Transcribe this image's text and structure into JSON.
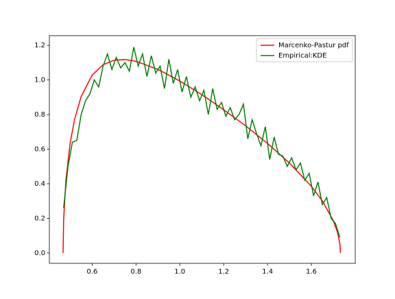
{
  "chart_data": {
    "type": "line",
    "series": [
      {
        "name": "Marcenko-Pastur pdf",
        "color": "#ff0000",
        "x": [
          0.4675,
          0.47,
          0.48,
          0.5,
          0.52,
          0.55,
          0.6,
          0.65,
          0.7,
          0.75,
          0.8,
          0.9,
          1.0,
          1.1,
          1.2,
          1.3,
          1.4,
          1.5,
          1.6,
          1.65,
          1.7,
          1.72,
          1.73,
          1.7325
        ],
        "values": [
          0,
          0.19,
          0.415,
          0.637,
          0.772,
          0.904,
          1.028,
          1.088,
          1.114,
          1.118,
          1.108,
          1.061,
          0.994,
          0.915,
          0.828,
          0.735,
          0.633,
          0.52,
          0.385,
          0.301,
          0.187,
          0.116,
          0.052,
          0
        ]
      },
      {
        "name": "Empirical:KDE",
        "color": "#008000",
        "x": [
          0.47,
          0.49,
          0.51,
          0.53,
          0.55,
          0.57,
          0.59,
          0.61,
          0.63,
          0.65,
          0.67,
          0.69,
          0.71,
          0.73,
          0.75,
          0.77,
          0.79,
          0.81,
          0.83,
          0.85,
          0.87,
          0.89,
          0.91,
          0.93,
          0.95,
          0.97,
          0.99,
          1.01,
          1.03,
          1.05,
          1.07,
          1.09,
          1.11,
          1.13,
          1.15,
          1.17,
          1.19,
          1.21,
          1.23,
          1.25,
          1.27,
          1.29,
          1.31,
          1.33,
          1.35,
          1.37,
          1.39,
          1.41,
          1.43,
          1.45,
          1.47,
          1.49,
          1.51,
          1.53,
          1.55,
          1.57,
          1.59,
          1.61,
          1.63,
          1.65,
          1.67,
          1.69,
          1.71,
          1.73
        ],
        "values": [
          0.26,
          0.5,
          0.64,
          0.65,
          0.8,
          0.88,
          0.92,
          1.0,
          0.96,
          1.08,
          1.15,
          1.06,
          1.13,
          1.07,
          1.1,
          1.05,
          1.19,
          1.08,
          1.15,
          1.02,
          1.14,
          1.04,
          1.08,
          0.95,
          1.12,
          0.98,
          1.06,
          0.93,
          1.02,
          0.9,
          0.96,
          0.88,
          0.94,
          0.8,
          0.95,
          0.83,
          0.87,
          0.79,
          0.84,
          0.77,
          0.8,
          0.86,
          0.66,
          0.77,
          0.69,
          0.62,
          0.73,
          0.54,
          0.67,
          0.57,
          0.56,
          0.5,
          0.55,
          0.48,
          0.52,
          0.42,
          0.46,
          0.33,
          0.41,
          0.28,
          0.32,
          0.2,
          0.17,
          0.09
        ]
      }
    ],
    "xlim": [
      0.405,
      1.8
    ],
    "ylim": [
      -0.06,
      1.256
    ],
    "xticks": [
      0.6,
      0.8,
      {
        "value": 1.0,
        "label": "1.0"
      },
      1.2,
      1.4,
      1.6
    ],
    "yticks": [
      {
        "value": 0,
        "label": "0.0"
      },
      0.2,
      0.4,
      0.6,
      0.8,
      {
        "value": 1,
        "label": "1.0"
      },
      1.2
    ],
    "legend": "upper right"
  }
}
